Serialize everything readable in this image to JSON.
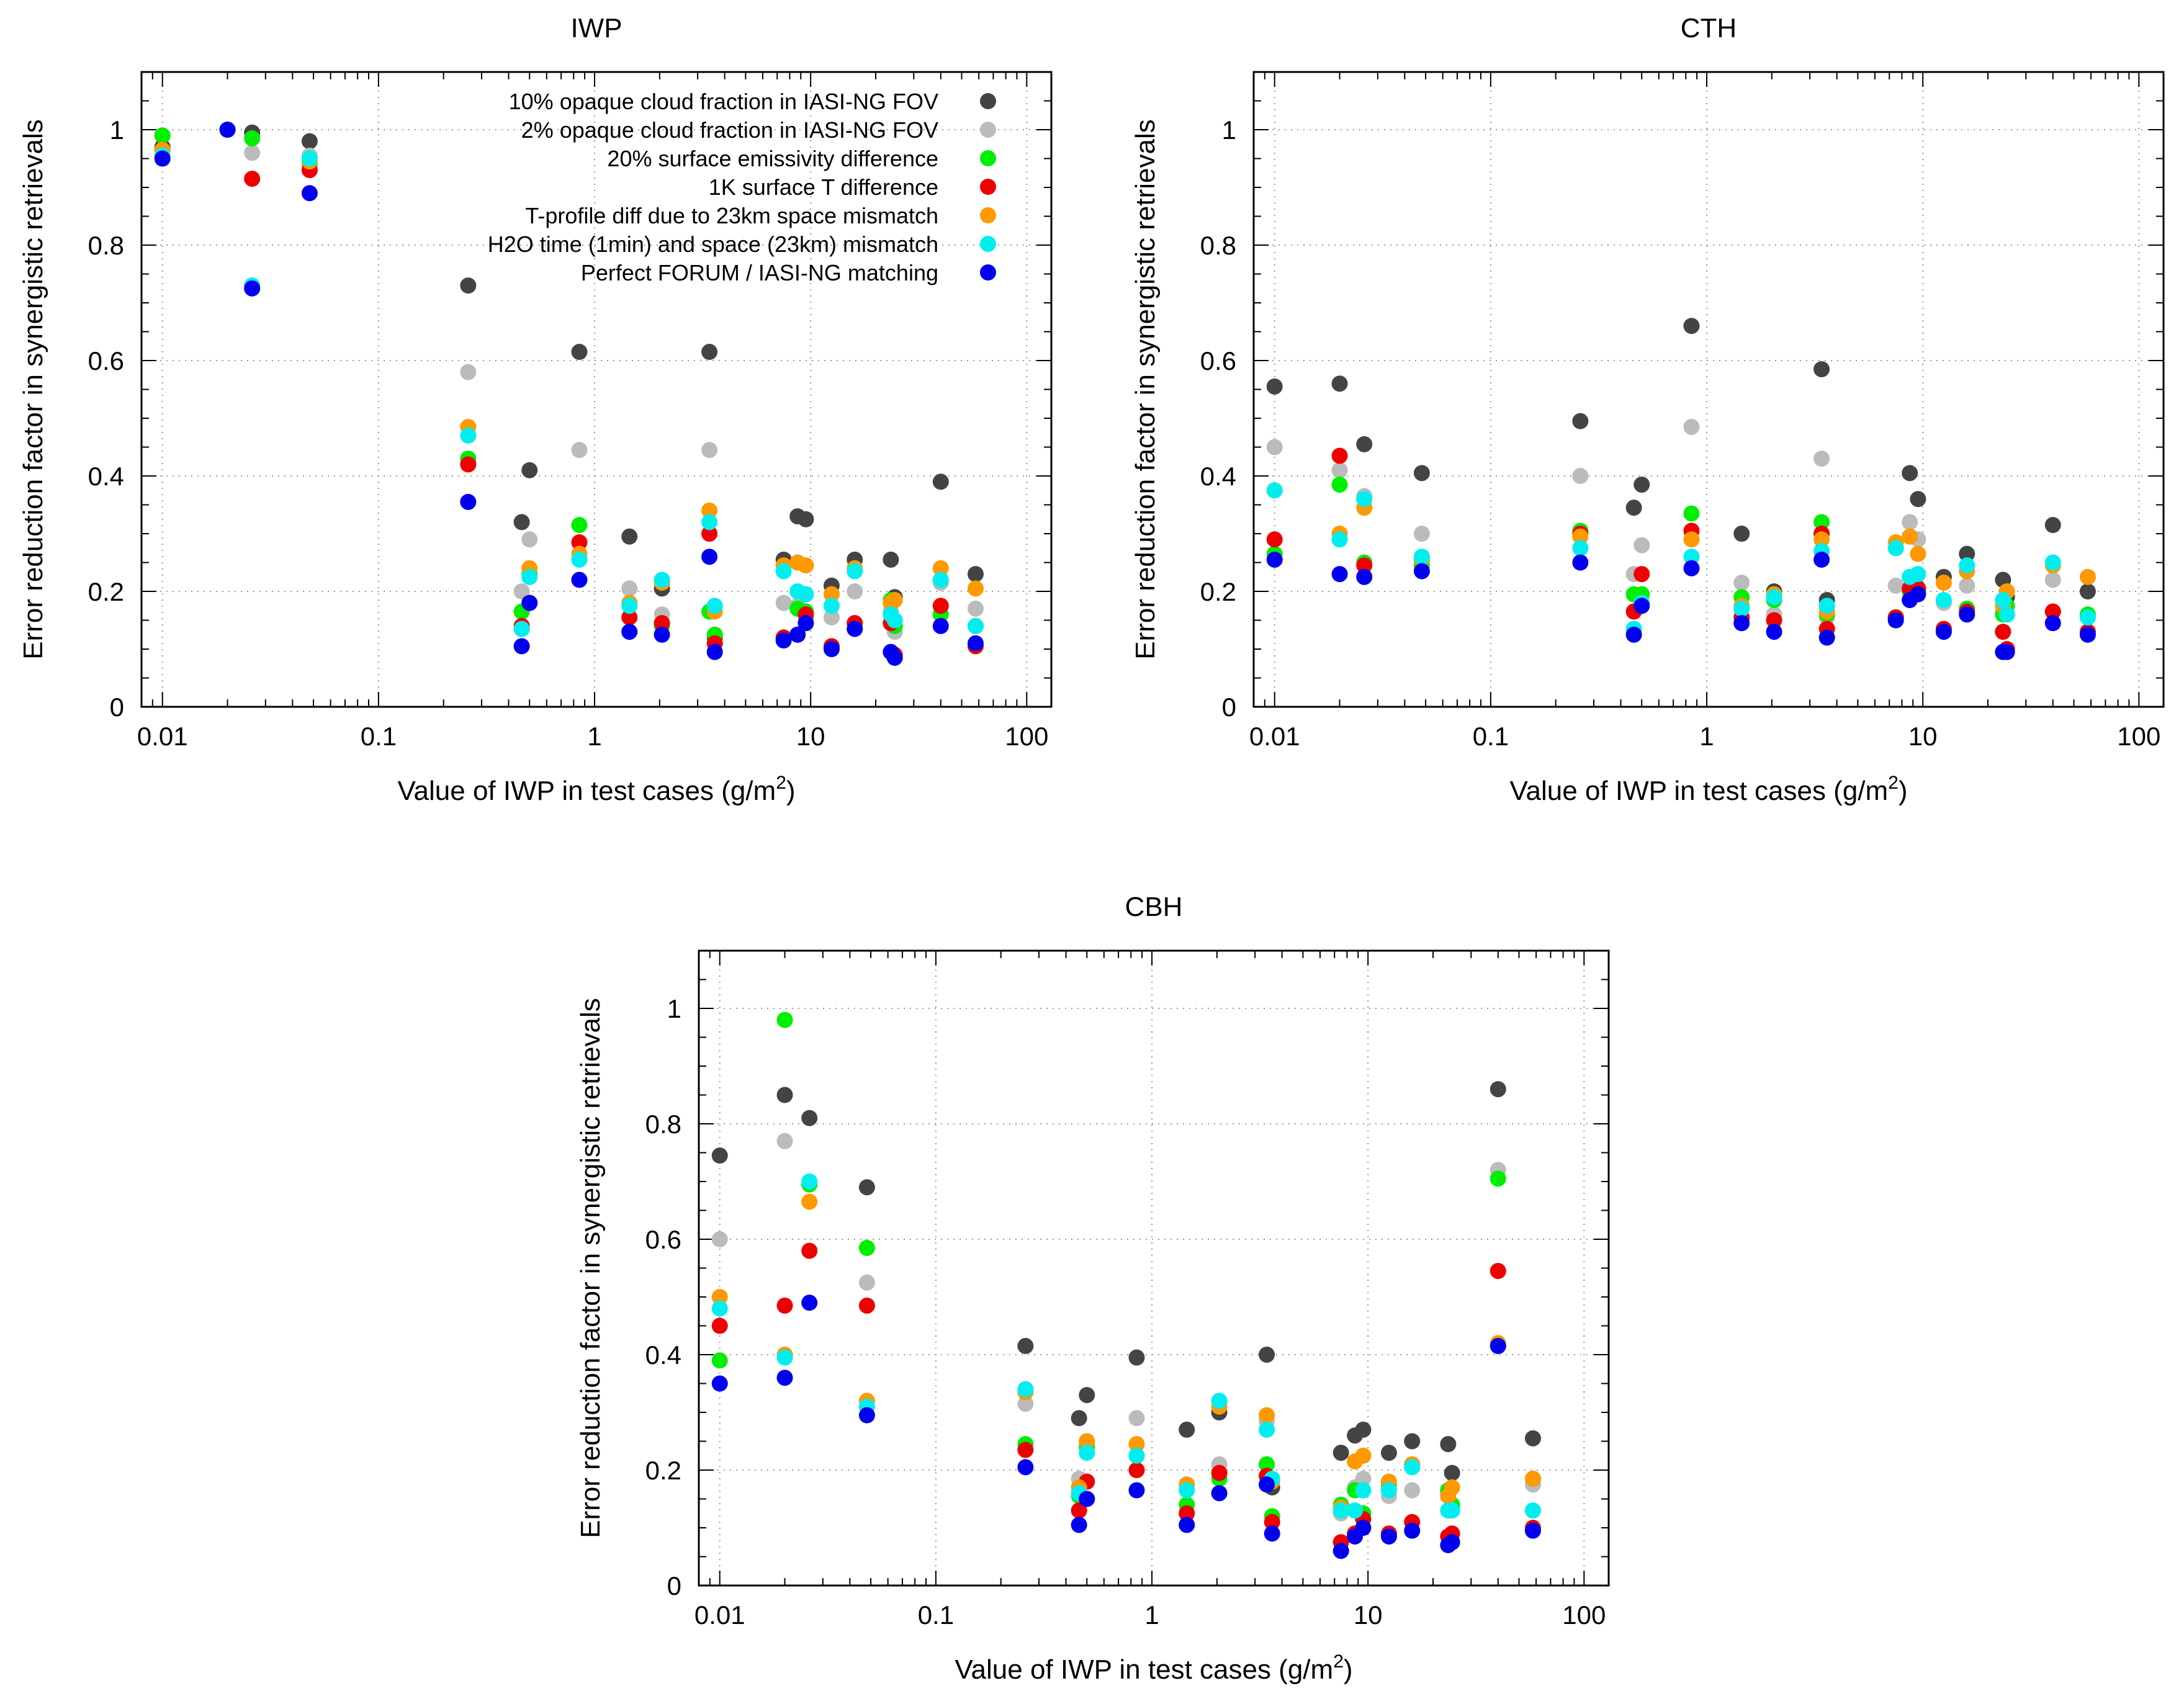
{
  "chart_data": [
    {
      "type": "scatter",
      "title": "IWP",
      "xlabel": "Value of IWP in test cases (g/m",
      "xlabel_sup": "2",
      "xlabel_end": ")",
      "ylabel": "Error reduction factor in synergistic retrievals",
      "xscale": "log",
      "xlim": [
        0.008,
        130
      ],
      "ylim": [
        0,
        1.1
      ],
      "x_ticks": [
        0.01,
        0.1,
        1,
        10,
        100
      ],
      "x_tick_labels": [
        "0.01",
        "0.1",
        "1",
        "10",
        "100"
      ],
      "y_ticks": [
        0,
        0.2,
        0.4,
        0.6,
        0.8,
        1
      ],
      "y_tick_labels": [
        "0",
        "0.2",
        "0.4",
        "0.6",
        "0.8",
        "1"
      ],
      "grid": true,
      "legend_position": "top-right",
      "x": [
        0.01,
        0.02,
        0.026,
        0.048,
        0.26,
        0.46,
        0.5,
        0.85,
        1.45,
        2.05,
        3.4,
        3.6,
        7.5,
        8.7,
        9.5,
        12.5,
        16.0,
        23.5,
        24.5,
        40.0,
        58.0
      ],
      "series": [
        {
          "name": "10% opaque cloud fraction in IASI-NG FOV",
          "color": "#444444",
          "values": [
            0.97,
            1.0,
            0.995,
            0.98,
            0.73,
            0.32,
            0.41,
            0.615,
            0.295,
            0.205,
            0.615,
            0.12,
            0.255,
            0.33,
            0.325,
            0.21,
            0.255,
            0.255,
            0.19,
            0.39,
            0.23
          ]
        },
        {
          "name": "2% opaque cloud fraction in IASI-NG FOV",
          "color": "#bbbbbb",
          "values": [
            0.965,
            1.0,
            0.96,
            0.955,
            0.58,
            0.2,
            0.29,
            0.445,
            0.205,
            0.16,
            0.445,
            0.11,
            0.18,
            0.175,
            0.155,
            0.155,
            0.2,
            0.165,
            0.13,
            0.215,
            0.17
          ]
        },
        {
          "name": "20% surface emissivity difference",
          "color": "#00ee00",
          "values": [
            0.99,
            1.0,
            0.985,
            0.94,
            0.43,
            0.165,
            0.23,
            0.315,
            0.18,
            0.14,
            0.165,
            0.125,
            0.12,
            0.17,
            0.165,
            0.105,
            0.145,
            0.185,
            0.14,
            0.16,
            0.14
          ]
        },
        {
          "name": "1K surface T difference",
          "color": "#ee0000",
          "values": [
            0.965,
            1.0,
            0.915,
            0.93,
            0.42,
            0.14,
            0.18,
            0.285,
            0.155,
            0.145,
            0.3,
            0.11,
            0.12,
            0.125,
            0.16,
            0.105,
            0.145,
            0.145,
            0.09,
            0.175,
            0.105
          ]
        },
        {
          "name": "T-profile diff due to 23km space mismatch",
          "color": "#ff9900",
          "values": [
            0.965,
            1.0,
            0.73,
            0.945,
            0.485,
            0.135,
            0.24,
            0.265,
            0.18,
            0.215,
            0.34,
            0.165,
            0.245,
            0.25,
            0.245,
            0.195,
            0.24,
            0.18,
            0.185,
            0.24,
            0.205
          ]
        },
        {
          "name": "H2O time (1min) and space (23km) mismatch",
          "color": "#00eeee",
          "values": [
            0.955,
            1.0,
            0.73,
            0.95,
            0.47,
            0.135,
            0.225,
            0.255,
            0.175,
            0.22,
            0.32,
            0.175,
            0.235,
            0.2,
            0.195,
            0.175,
            0.235,
            0.16,
            0.15,
            0.22,
            0.14
          ]
        },
        {
          "name": "Perfect FORUM / IASI-NG matching",
          "color": "#0000ee",
          "values": [
            0.95,
            1.0,
            0.725,
            0.89,
            0.355,
            0.105,
            0.18,
            0.22,
            0.13,
            0.125,
            0.26,
            0.095,
            0.115,
            0.125,
            0.145,
            0.1,
            0.135,
            0.095,
            0.085,
            0.14,
            0.11
          ]
        }
      ]
    },
    {
      "type": "scatter",
      "title": "CTH",
      "xlabel": "Value of IWP in test cases (g/m",
      "xlabel_sup": "2",
      "xlabel_end": ")",
      "ylabel": "Error reduction factor in synergistic retrievals",
      "xscale": "log",
      "xlim": [
        0.008,
        130
      ],
      "ylim": [
        0,
        1.1
      ],
      "x_ticks": [
        0.01,
        0.1,
        1,
        10,
        100
      ],
      "x_tick_labels": [
        "0.01",
        "0.1",
        "1",
        "10",
        "100"
      ],
      "y_ticks": [
        0,
        0.2,
        0.4,
        0.6,
        0.8,
        1
      ],
      "y_tick_labels": [
        "0",
        "0.2",
        "0.4",
        "0.6",
        "0.8",
        "1"
      ],
      "grid": true,
      "x": [
        0.01,
        0.02,
        0.026,
        0.048,
        0.26,
        0.46,
        0.5,
        0.85,
        1.45,
        2.05,
        3.4,
        3.6,
        7.5,
        8.7,
        9.5,
        12.5,
        16.0,
        23.5,
        24.5,
        40.0,
        58.0
      ],
      "series": [
        {
          "name": "10% opaque cloud fraction in IASI-NG FOV",
          "color": "#444444",
          "values": [
            0.555,
            0.56,
            0.455,
            0.405,
            0.495,
            0.345,
            0.385,
            0.66,
            0.3,
            0.2,
            0.585,
            0.185,
            0.155,
            0.405,
            0.36,
            0.225,
            0.265,
            0.22,
            0.19,
            0.315,
            0.2
          ]
        },
        {
          "name": "2% opaque cloud fraction in IASI-NG FOV",
          "color": "#bbbbbb",
          "values": [
            0.45,
            0.41,
            0.365,
            0.3,
            0.4,
            0.23,
            0.28,
            0.485,
            0.215,
            0.16,
            0.43,
            0.155,
            0.21,
            0.32,
            0.29,
            0.18,
            0.21,
            0.165,
            0.16,
            0.22,
            0.16
          ]
        },
        {
          "name": "20% surface emissivity difference",
          "color": "#00ee00",
          "values": [
            0.265,
            0.385,
            0.25,
            0.245,
            0.305,
            0.195,
            0.195,
            0.335,
            0.19,
            0.185,
            0.32,
            0.16,
            0.155,
            0.2,
            0.2,
            0.135,
            0.17,
            0.16,
            0.175,
            0.165,
            0.16
          ]
        },
        {
          "name": "1K surface T difference",
          "color": "#ee0000",
          "values": [
            0.29,
            0.435,
            0.245,
            0.255,
            0.3,
            0.165,
            0.23,
            0.305,
            0.155,
            0.15,
            0.3,
            0.135,
            0.155,
            0.205,
            0.205,
            0.135,
            0.165,
            0.13,
            0.1,
            0.165,
            0.13
          ]
        },
        {
          "name": "T-profile diff due to 23km space mismatch",
          "color": "#ff9900",
          "values": [
            0.375,
            0.3,
            0.345,
            0.255,
            0.295,
            0.135,
            0.18,
            0.29,
            0.175,
            0.195,
            0.29,
            0.165,
            0.285,
            0.295,
            0.265,
            0.215,
            0.235,
            0.175,
            0.2,
            0.245,
            0.225
          ]
        },
        {
          "name": "H2O time (1min) and space (23km) mismatch",
          "color": "#00eeee",
          "values": [
            0.375,
            0.29,
            0.36,
            0.26,
            0.275,
            0.135,
            0.18,
            0.26,
            0.17,
            0.19,
            0.27,
            0.175,
            0.275,
            0.225,
            0.23,
            0.185,
            0.245,
            0.185,
            0.16,
            0.25,
            0.155
          ]
        },
        {
          "name": "Perfect FORUM / IASI-NG matching",
          "color": "#0000ee",
          "values": [
            0.255,
            0.23,
            0.225,
            0.235,
            0.25,
            0.125,
            0.175,
            0.24,
            0.145,
            0.13,
            0.255,
            0.12,
            0.15,
            0.185,
            0.195,
            0.13,
            0.16,
            0.095,
            0.095,
            0.145,
            0.125
          ]
        }
      ]
    },
    {
      "type": "scatter",
      "title": "CBH",
      "xlabel": "Value of IWP in test cases (g/m",
      "xlabel_sup": "2",
      "xlabel_end": ")",
      "ylabel": "Error reduction factor in synergistic retrievals",
      "xscale": "log",
      "xlim": [
        0.008,
        130
      ],
      "ylim": [
        0,
        1.1
      ],
      "x_ticks": [
        0.01,
        0.1,
        1,
        10,
        100
      ],
      "x_tick_labels": [
        "0.01",
        "0.1",
        "1",
        "10",
        "100"
      ],
      "y_ticks": [
        0,
        0.2,
        0.4,
        0.6,
        0.8,
        1
      ],
      "y_tick_labels": [
        "0",
        "0.2",
        "0.4",
        "0.6",
        "0.8",
        "1"
      ],
      "grid": true,
      "x": [
        0.01,
        0.02,
        0.026,
        0.048,
        0.26,
        0.46,
        0.5,
        0.85,
        1.45,
        2.05,
        3.4,
        3.6,
        7.5,
        8.7,
        9.5,
        12.5,
        16.0,
        23.5,
        24.5,
        40.0,
        58.0
      ],
      "series": [
        {
          "name": "10% opaque cloud fraction in IASI-NG FOV",
          "color": "#444444",
          "values": [
            0.745,
            0.85,
            0.81,
            0.69,
            0.415,
            0.29,
            0.33,
            0.395,
            0.27,
            0.3,
            0.4,
            0.17,
            0.23,
            0.26,
            0.27,
            0.23,
            0.25,
            0.245,
            0.195,
            0.86,
            0.255
          ]
        },
        {
          "name": "2% opaque cloud fraction in IASI-NG FOV",
          "color": "#bbbbbb",
          "values": [
            0.6,
            0.77,
            0.695,
            0.525,
            0.315,
            0.185,
            0.245,
            0.29,
            0.175,
            0.21,
            0.285,
            0.12,
            0.125,
            0.17,
            0.185,
            0.155,
            0.165,
            0.16,
            0.135,
            0.72,
            0.175
          ]
        },
        {
          "name": "20% surface emissivity difference",
          "color": "#00ee00",
          "values": [
            0.39,
            0.98,
            0.695,
            0.585,
            0.245,
            0.155,
            0.24,
            0.225,
            0.14,
            0.185,
            0.21,
            0.12,
            0.14,
            0.165,
            0.125,
            0.175,
            0.21,
            0.165,
            0.14,
            0.705,
            0.185
          ]
        },
        {
          "name": "1K surface T difference",
          "color": "#ee0000",
          "values": [
            0.45,
            0.485,
            0.58,
            0.485,
            0.235,
            0.13,
            0.18,
            0.2,
            0.125,
            0.195,
            0.19,
            0.11,
            0.075,
            0.09,
            0.115,
            0.09,
            0.11,
            0.085,
            0.09,
            0.545,
            0.1
          ]
        },
        {
          "name": "T-profile diff due to 23km space mismatch",
          "color": "#ff9900",
          "values": [
            0.5,
            0.4,
            0.665,
            0.32,
            0.335,
            0.17,
            0.25,
            0.245,
            0.175,
            0.31,
            0.295,
            0.18,
            0.135,
            0.215,
            0.225,
            0.18,
            0.21,
            0.155,
            0.17,
            0.42,
            0.185
          ]
        },
        {
          "name": "H2O time (1min) and space (23km) mismatch",
          "color": "#00eeee",
          "values": [
            0.48,
            0.395,
            0.7,
            0.31,
            0.34,
            0.16,
            0.23,
            0.225,
            0.165,
            0.32,
            0.27,
            0.185,
            0.13,
            0.13,
            0.165,
            0.165,
            0.205,
            0.13,
            0.13,
            0.415,
            0.13
          ]
        },
        {
          "name": "Perfect FORUM / IASI-NG matching",
          "color": "#0000ee",
          "values": [
            0.35,
            0.36,
            0.49,
            0.295,
            0.205,
            0.105,
            0.15,
            0.165,
            0.105,
            0.16,
            0.175,
            0.09,
            0.06,
            0.085,
            0.1,
            0.085,
            0.095,
            0.07,
            0.075,
            0.415,
            0.095
          ]
        }
      ]
    }
  ]
}
